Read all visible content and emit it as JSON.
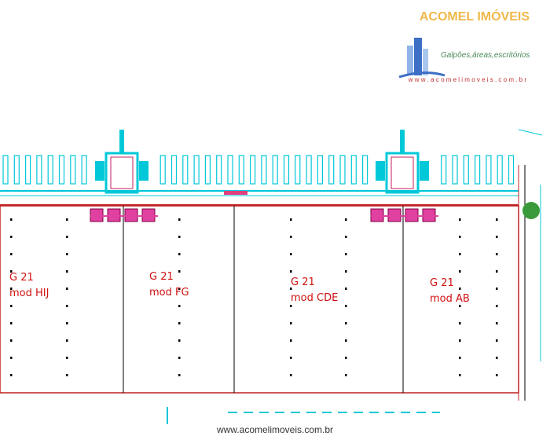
{
  "header": {
    "brand": "ACOMEL IMÓVEIS",
    "tagline": "Galpões,áreas,escritórios",
    "url": "w w w . a c o m e l i m o v e i s . c o m . b r"
  },
  "modules": [
    {
      "code": "G 21",
      "name": "mod  HIJ"
    },
    {
      "code": "G 21",
      "name": "mod  FG"
    },
    {
      "code": "G 21",
      "name": "mod  CDE"
    },
    {
      "code": "G 21",
      "name": "mod  AB"
    }
  ],
  "footer": {
    "url": "www.acomelimoveis.com.br"
  }
}
